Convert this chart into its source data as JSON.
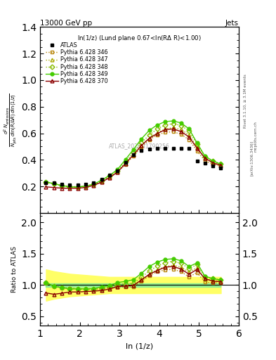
{
  "title_left": "13000 GeV pp",
  "title_right": "Jets",
  "annotation": "ln(1/z) (Lund plane 0.67<ln(RΔ R)<1.00)",
  "watermark": "ATLAS_2020_I1790256",
  "xlabel": "ln (1/z)",
  "ylabel_ratio": "Ratio to ATLAS",
  "xlim": [
    1.0,
    6.0
  ],
  "ylim_main": [
    0.0,
    1.4
  ],
  "ylim_ratio": [
    0.35,
    2.15
  ],
  "yticks_main": [
    0.2,
    0.4,
    0.6,
    0.8,
    1.0,
    1.2,
    1.4
  ],
  "yticks_ratio": [
    0.5,
    1.0,
    1.5,
    2.0
  ],
  "atlas_x": [
    1.15,
    1.35,
    1.55,
    1.75,
    1.95,
    2.15,
    2.35,
    2.55,
    2.75,
    2.95,
    3.15,
    3.35,
    3.55,
    3.75,
    3.95,
    4.15,
    4.35,
    4.55,
    4.75,
    4.95,
    5.15,
    5.35,
    5.55
  ],
  "atlas_y": [
    0.225,
    0.225,
    0.215,
    0.21,
    0.21,
    0.215,
    0.23,
    0.255,
    0.285,
    0.315,
    0.38,
    0.44,
    0.47,
    0.48,
    0.485,
    0.488,
    0.488,
    0.488,
    0.488,
    0.39,
    0.375,
    0.355,
    0.34
  ],
  "p346_x": [
    1.15,
    1.35,
    1.55,
    1.75,
    1.95,
    2.15,
    2.35,
    2.55,
    2.75,
    2.95,
    3.15,
    3.35,
    3.55,
    3.75,
    3.95,
    4.15,
    4.35,
    4.55,
    4.75,
    4.95,
    5.15,
    5.35,
    5.55
  ],
  "p346_y": [
    0.235,
    0.22,
    0.207,
    0.2,
    0.197,
    0.202,
    0.215,
    0.24,
    0.272,
    0.308,
    0.367,
    0.428,
    0.497,
    0.552,
    0.588,
    0.607,
    0.612,
    0.592,
    0.552,
    0.468,
    0.393,
    0.368,
    0.352
  ],
  "p347_x": [
    1.15,
    1.35,
    1.55,
    1.75,
    1.95,
    2.15,
    2.35,
    2.55,
    2.75,
    2.95,
    3.15,
    3.35,
    3.55,
    3.75,
    3.95,
    4.15,
    4.35,
    4.55,
    4.75,
    4.95,
    5.15,
    5.35,
    5.55
  ],
  "p347_y": [
    0.235,
    0.22,
    0.207,
    0.2,
    0.197,
    0.202,
    0.215,
    0.24,
    0.273,
    0.313,
    0.373,
    0.438,
    0.508,
    0.563,
    0.603,
    0.633,
    0.643,
    0.628,
    0.588,
    0.498,
    0.413,
    0.382,
    0.362
  ],
  "p348_x": [
    1.15,
    1.35,
    1.55,
    1.75,
    1.95,
    2.15,
    2.35,
    2.55,
    2.75,
    2.95,
    3.15,
    3.35,
    3.55,
    3.75,
    3.95,
    4.15,
    4.35,
    4.55,
    4.75,
    4.95,
    5.15,
    5.35,
    5.55
  ],
  "p348_y": [
    0.235,
    0.22,
    0.207,
    0.197,
    0.197,
    0.202,
    0.217,
    0.243,
    0.278,
    0.318,
    0.388,
    0.453,
    0.528,
    0.588,
    0.633,
    0.663,
    0.673,
    0.658,
    0.618,
    0.518,
    0.423,
    0.392,
    0.368
  ],
  "p349_x": [
    1.15,
    1.35,
    1.55,
    1.75,
    1.95,
    2.15,
    2.35,
    2.55,
    2.75,
    2.95,
    3.15,
    3.35,
    3.55,
    3.75,
    3.95,
    4.15,
    4.35,
    4.55,
    4.75,
    4.95,
    5.15,
    5.35,
    5.55
  ],
  "p349_y": [
    0.235,
    0.22,
    0.207,
    0.197,
    0.197,
    0.202,
    0.217,
    0.248,
    0.283,
    0.328,
    0.403,
    0.478,
    0.558,
    0.623,
    0.663,
    0.688,
    0.693,
    0.678,
    0.633,
    0.528,
    0.428,
    0.392,
    0.368
  ],
  "p370_x": [
    1.15,
    1.35,
    1.55,
    1.75,
    1.95,
    2.15,
    2.35,
    2.55,
    2.75,
    2.95,
    3.15,
    3.35,
    3.55,
    3.75,
    3.95,
    4.15,
    4.35,
    4.55,
    4.75,
    4.95,
    5.15,
    5.35,
    5.55
  ],
  "p370_y": [
    0.197,
    0.192,
    0.187,
    0.187,
    0.187,
    0.193,
    0.208,
    0.233,
    0.267,
    0.308,
    0.373,
    0.438,
    0.508,
    0.563,
    0.598,
    0.628,
    0.633,
    0.613,
    0.573,
    0.488,
    0.413,
    0.378,
    0.358
  ],
  "ratio_346_y": [
    1.04,
    0.98,
    0.96,
    0.95,
    0.94,
    0.94,
    0.93,
    0.94,
    0.955,
    0.977,
    0.966,
    0.972,
    1.057,
    1.15,
    1.213,
    1.243,
    1.253,
    1.213,
    1.13,
    1.2,
    1.048,
    1.036,
    1.035
  ],
  "ratio_347_y": [
    1.04,
    0.98,
    0.96,
    0.95,
    0.94,
    0.94,
    0.935,
    0.94,
    0.958,
    0.994,
    0.982,
    0.995,
    1.08,
    1.173,
    1.244,
    1.296,
    1.317,
    1.287,
    1.205,
    1.277,
    1.1,
    1.076,
    1.065
  ],
  "ratio_348_y": [
    1.04,
    0.98,
    0.96,
    0.94,
    0.94,
    0.94,
    0.943,
    0.953,
    0.977,
    1.009,
    1.021,
    1.03,
    1.123,
    1.225,
    1.306,
    1.358,
    1.379,
    1.348,
    1.265,
    1.328,
    1.128,
    1.104,
    1.082
  ],
  "ratio_349_y": [
    1.04,
    0.98,
    0.96,
    0.94,
    0.94,
    0.94,
    0.943,
    0.973,
    0.993,
    1.04,
    1.06,
    1.086,
    1.187,
    1.298,
    1.368,
    1.41,
    1.42,
    1.389,
    1.297,
    1.354,
    1.141,
    1.104,
    1.082
  ],
  "ratio_370_y": [
    0.875,
    0.853,
    0.87,
    0.89,
    0.89,
    0.897,
    0.904,
    0.914,
    0.937,
    0.977,
    0.982,
    0.995,
    1.081,
    1.173,
    1.233,
    1.287,
    1.296,
    1.256,
    1.174,
    1.251,
    1.101,
    1.064,
    1.053
  ],
  "band_x": [
    1.15,
    1.35,
    1.55,
    1.75,
    1.95,
    2.15,
    2.35,
    2.55,
    2.75,
    2.95,
    3.15,
    3.35,
    3.55,
    3.75,
    3.95,
    4.15,
    4.35,
    4.55,
    4.75,
    4.95,
    5.15,
    5.35,
    5.55
  ],
  "band_green_lo": [
    0.97,
    0.97,
    0.97,
    0.97,
    0.97,
    0.97,
    0.97,
    0.97,
    0.97,
    0.97,
    0.97,
    0.97,
    0.97,
    0.97,
    0.97,
    0.97,
    0.97,
    0.97,
    0.97,
    0.97,
    0.97,
    0.97,
    0.97
  ],
  "band_green_hi": [
    1.03,
    1.03,
    1.03,
    1.03,
    1.03,
    1.03,
    1.03,
    1.03,
    1.03,
    1.03,
    1.03,
    1.03,
    1.03,
    1.03,
    1.03,
    1.03,
    1.03,
    1.03,
    1.03,
    1.03,
    1.03,
    1.03,
    1.03
  ],
  "band_yellow_lo": [
    0.75,
    0.78,
    0.8,
    0.82,
    0.83,
    0.84,
    0.85,
    0.86,
    0.87,
    0.87,
    0.87,
    0.87,
    0.87,
    0.87,
    0.87,
    0.87,
    0.87,
    0.87,
    0.87,
    0.87,
    0.87,
    0.87,
    0.87
  ],
  "band_yellow_hi": [
    1.25,
    1.22,
    1.2,
    1.18,
    1.17,
    1.16,
    1.15,
    1.14,
    1.13,
    1.13,
    1.13,
    1.13,
    1.13,
    1.13,
    1.13,
    1.13,
    1.13,
    1.13,
    1.13,
    1.13,
    1.13,
    1.13,
    1.13
  ],
  "color_346": "#b8860b",
  "color_347": "#aaaa00",
  "color_348": "#88bb00",
  "color_349": "#44cc00",
  "color_370": "#8b0000",
  "color_atlas": "#000000",
  "band_green_color": "#90ee90",
  "band_yellow_color": "#ffff66"
}
